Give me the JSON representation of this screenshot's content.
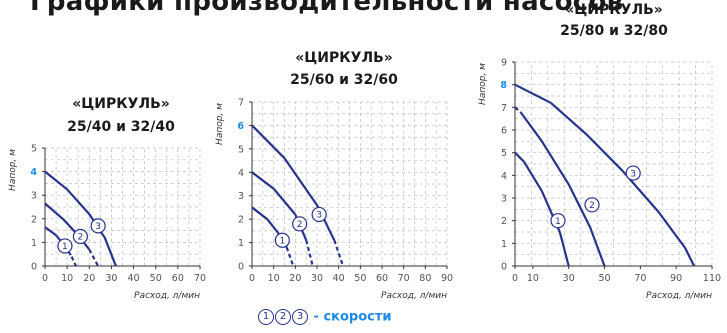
{
  "heading": "Графики производительности насосов",
  "legend": {
    "markers": [
      "1",
      "2",
      "3"
    ],
    "text": "- скорости"
  },
  "colors": {
    "curve": "#27348b",
    "highlight": "#1e88e5",
    "grid": "#bdbdbd"
  },
  "chart_data": [
    {
      "type": "line",
      "title": [
        "«ЦИРКУЛЬ»",
        "25/40 и 32/40"
      ],
      "xlabel": "Расход, л/мин",
      "ylabel": "Напор, м",
      "xlim": [
        0,
        70
      ],
      "ylim": [
        0,
        5
      ],
      "xticks": [
        0,
        10,
        20,
        30,
        40,
        50,
        60,
        70
      ],
      "yticks": [
        0,
        1,
        2,
        3,
        4,
        5
      ],
      "y_highlight": 4,
      "grid": true,
      "series": [
        {
          "name": "1",
          "points": [
            [
              0,
              1.65
            ],
            [
              5,
              1.3
            ],
            [
              9,
              0.85
            ],
            [
              12,
              0.4
            ],
            [
              14,
              0
            ]
          ],
          "dashed_from": 9,
          "marker_at": [
            9,
            0.85
          ]
        },
        {
          "name": "2",
          "points": [
            [
              0,
              2.65
            ],
            [
              8,
              2.0
            ],
            [
              15,
              1.3
            ],
            [
              20,
              0.7
            ],
            [
              24,
              0
            ]
          ],
          "dashed_from": 20,
          "marker_at": [
            16,
            1.25
          ]
        },
        {
          "name": "3",
          "points": [
            [
              0,
              4.0
            ],
            [
              10,
              3.25
            ],
            [
              20,
              2.2
            ],
            [
              27,
              1.2
            ],
            [
              32,
              0
            ]
          ],
          "dashed_from": null,
          "marker_at": [
            24,
            1.7
          ]
        }
      ]
    },
    {
      "type": "line",
      "title": [
        "«ЦИРКУЛЬ»",
        "25/60 и 32/60"
      ],
      "xlabel": "Расход, л/мин",
      "ylabel": "Напор, м",
      "xlim": [
        0,
        90
      ],
      "ylim": [
        0,
        7
      ],
      "xticks": [
        0,
        10,
        20,
        30,
        40,
        50,
        60,
        70,
        80,
        90
      ],
      "yticks": [
        0,
        1,
        2,
        3,
        4,
        5,
        6,
        7
      ],
      "y_highlight": 6,
      "grid": true,
      "series": [
        {
          "name": "1",
          "points": [
            [
              0,
              2.5
            ],
            [
              7,
              2.0
            ],
            [
              13,
              1.3
            ],
            [
              16,
              0.8
            ],
            [
              19,
              0
            ]
          ],
          "dashed_from": 16,
          "marker_at": [
            14,
            1.1
          ]
        },
        {
          "name": "2",
          "points": [
            [
              0,
              4.0
            ],
            [
              10,
              3.3
            ],
            [
              20,
              2.2
            ],
            [
              25,
              1.1
            ],
            [
              28,
              0
            ]
          ],
          "dashed_from": 25,
          "marker_at": [
            22,
            1.8
          ]
        },
        {
          "name": "3",
          "points": [
            [
              0,
              6.0
            ],
            [
              15,
              4.6
            ],
            [
              30,
              2.6
            ],
            [
              38,
              1.1
            ],
            [
              42,
              0
            ]
          ],
          "dashed_from": 38,
          "marker_at": [
            31,
            2.2
          ]
        }
      ]
    },
    {
      "type": "line",
      "title": [
        "«ЦИРКУЛЬ»",
        "25/80 и 32/80"
      ],
      "xlabel": "Расход, л/мин",
      "ylabel": "Напор, м",
      "xlim": [
        0,
        110
      ],
      "ylim": [
        0,
        9
      ],
      "xticks": [
        0,
        10,
        30,
        50,
        70,
        90,
        110
      ],
      "yticks": [
        0,
        1,
        2,
        3,
        4,
        5,
        6,
        7,
        8,
        9
      ],
      "y_highlight": 8,
      "grid": true,
      "series": [
        {
          "name": "1",
          "points": [
            [
              0,
              5.0
            ],
            [
              5,
              4.6
            ],
            [
              15,
              3.3
            ],
            [
              25,
              1.5
            ],
            [
              30,
              0
            ]
          ],
          "dashed_from": null,
          "marker_at": [
            24,
            2.0
          ]
        },
        {
          "name": "2",
          "points": [
            [
              0,
              7.0
            ],
            [
              3,
              6.8
            ],
            [
              15,
              5.5
            ],
            [
              30,
              3.6
            ],
            [
              42,
              1.7
            ],
            [
              50,
              0
            ]
          ],
          "dashed_from": null,
          "dashed_to": 3,
          "marker_at": [
            43,
            2.7
          ]
        },
        {
          "name": "3",
          "points": [
            [
              0,
              8.0
            ],
            [
              20,
              7.2
            ],
            [
              40,
              5.8
            ],
            [
              60,
              4.2
            ],
            [
              80,
              2.4
            ],
            [
              95,
              0.8
            ],
            [
              100,
              0
            ]
          ],
          "dashed_from": null,
          "marker_at": [
            66,
            4.1
          ]
        }
      ]
    }
  ]
}
